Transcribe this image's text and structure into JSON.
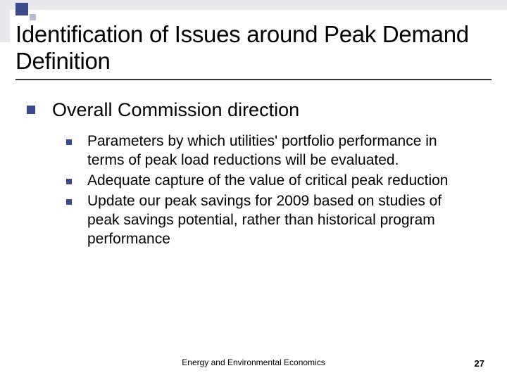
{
  "decor": {
    "bar_color": "#e8e8ec",
    "accent_color": "#3a4a8a",
    "square_small_color": "#b8bcd4"
  },
  "title": "Identification of Issues around Peak Demand Definition",
  "title_fontsize": 33,
  "bullets": {
    "lvl1_fontsize": 27,
    "lvl2_fontsize": 21,
    "bullet_color": "#3a4a8a",
    "heading": "Overall Commission direction",
    "items": [
      "Parameters by which utilities' portfolio performance in terms of peak load reductions will be evaluated.",
      "Adequate capture of the value of critical peak reduction",
      "Update our peak savings for 2009 based on studies of peak savings potential, rather than historical program performance"
    ]
  },
  "footer": "Energy and Environmental Economics",
  "page_number": "27"
}
